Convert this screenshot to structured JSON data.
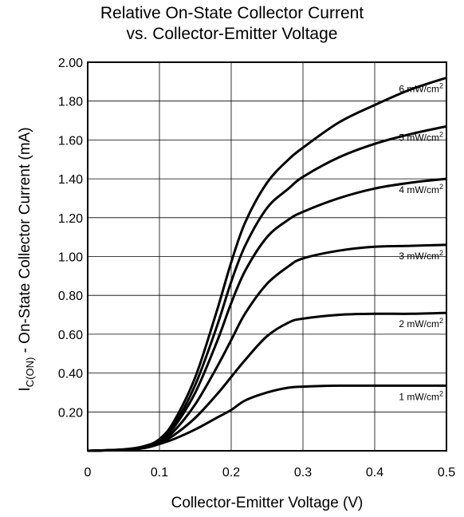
{
  "chart_data": {
    "type": "line",
    "title": "Relative On-State Collector Current",
    "subtitle": "vs. Collector-Emitter Voltage",
    "xlabel": "Collector-Emitter Voltage (V)",
    "ylabel_main": "I",
    "ylabel_sub": "C(ON)",
    "ylabel_rest": " - On-State Collector Current (mA)",
    "xlim": [
      0,
      0.5
    ],
    "ylim": [
      0,
      2.0
    ],
    "x_ticks": [
      "0",
      "0.1",
      "0.2",
      "0.3",
      "0.4",
      "0.5"
    ],
    "y_ticks": [
      "0.20",
      "0.40",
      "0.60",
      "0.80",
      "1.00",
      "1.20",
      "1.40",
      "1.60",
      "1.80",
      "2.00"
    ],
    "grid": true,
    "series": [
      {
        "name": "1 mW/cm",
        "sup": "2",
        "x": [
          0,
          0.05,
          0.08,
          0.1,
          0.12,
          0.15,
          0.18,
          0.2,
          0.22,
          0.25,
          0.28,
          0.3,
          0.35,
          0.4,
          0.45,
          0.5
        ],
        "y": [
          0,
          0.005,
          0.015,
          0.035,
          0.06,
          0.11,
          0.17,
          0.21,
          0.26,
          0.3,
          0.325,
          0.33,
          0.335,
          0.335,
          0.335,
          0.335
        ]
      },
      {
        "name": "2 mW/cm",
        "sup": "2",
        "x": [
          0,
          0.05,
          0.08,
          0.1,
          0.12,
          0.15,
          0.18,
          0.2,
          0.22,
          0.25,
          0.28,
          0.3,
          0.35,
          0.4,
          0.45,
          0.5
        ],
        "y": [
          0,
          0.005,
          0.015,
          0.04,
          0.08,
          0.17,
          0.29,
          0.38,
          0.47,
          0.59,
          0.66,
          0.68,
          0.7,
          0.705,
          0.705,
          0.71
        ]
      },
      {
        "name": "3 mW/cm",
        "sup": "2",
        "x": [
          0,
          0.05,
          0.08,
          0.1,
          0.12,
          0.15,
          0.18,
          0.2,
          0.22,
          0.25,
          0.28,
          0.3,
          0.35,
          0.4,
          0.45,
          0.5
        ],
        "y": [
          0,
          0.005,
          0.017,
          0.045,
          0.1,
          0.24,
          0.43,
          0.57,
          0.71,
          0.86,
          0.95,
          0.99,
          1.03,
          1.05,
          1.055,
          1.06
        ]
      },
      {
        "name": "4 mW/cm",
        "sup": "2",
        "x": [
          0,
          0.05,
          0.08,
          0.1,
          0.12,
          0.15,
          0.18,
          0.2,
          0.22,
          0.25,
          0.28,
          0.3,
          0.35,
          0.4,
          0.45,
          0.5
        ],
        "y": [
          0,
          0.006,
          0.02,
          0.05,
          0.12,
          0.3,
          0.56,
          0.76,
          0.93,
          1.1,
          1.19,
          1.23,
          1.3,
          1.35,
          1.38,
          1.4
        ]
      },
      {
        "name": "5 mW/cm",
        "sup": "2",
        "x": [
          0,
          0.05,
          0.08,
          0.1,
          0.12,
          0.15,
          0.18,
          0.2,
          0.22,
          0.25,
          0.28,
          0.3,
          0.35,
          0.4,
          0.45,
          0.5
        ],
        "y": [
          0,
          0.006,
          0.022,
          0.055,
          0.13,
          0.34,
          0.64,
          0.87,
          1.06,
          1.25,
          1.35,
          1.41,
          1.51,
          1.58,
          1.63,
          1.67
        ]
      },
      {
        "name": "6 mW/cm",
        "sup": "2",
        "x": [
          0,
          0.05,
          0.08,
          0.1,
          0.12,
          0.15,
          0.18,
          0.2,
          0.22,
          0.25,
          0.28,
          0.3,
          0.35,
          0.4,
          0.45,
          0.5
        ],
        "y": [
          0,
          0.007,
          0.025,
          0.06,
          0.15,
          0.38,
          0.72,
          0.97,
          1.18,
          1.38,
          1.5,
          1.56,
          1.69,
          1.78,
          1.86,
          1.92
        ]
      }
    ],
    "colors": {
      "line": "#000000",
      "grid": "#000000",
      "background": "#ffffff"
    }
  }
}
